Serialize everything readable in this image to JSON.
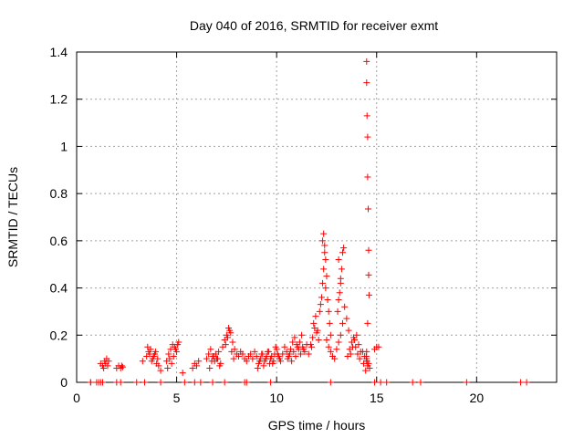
{
  "chart_data": {
    "type": "scatter",
    "title": "Day 040 of 2016, SRMTID for receiver exmt",
    "xlabel": "GPS time / hours",
    "ylabel": "SRMTID / TECUs",
    "xlim": [
      0,
      24
    ],
    "ylim": [
      0,
      1.4
    ],
    "xticks": [
      0,
      5,
      10,
      15,
      20
    ],
    "xtick_labels": [
      "0",
      "5",
      "10",
      "15",
      "20"
    ],
    "yticks": [
      0,
      0.2,
      0.4,
      0.6,
      0.8,
      1.0,
      1.2,
      1.4
    ],
    "ytick_labels": [
      "0",
      "0.2",
      "0.4",
      "0.6",
      "0.8",
      "1",
      "1.2",
      "1.4"
    ],
    "grid": true,
    "marker": "plus",
    "color": "#ff0000",
    "series": [
      {
        "x": [
          0.7,
          1.0,
          1.2,
          1.3,
          1.4,
          1.5,
          1.35,
          1.45,
          1.55,
          1.6,
          2.0,
          2.1,
          2.2,
          2.25,
          2.3,
          3.0,
          3.3,
          3.5,
          3.6,
          3.7,
          3.8,
          3.9,
          4.0,
          3.55,
          3.65,
          3.75,
          3.85,
          3.95,
          4.05,
          4.1,
          4.2,
          4.5,
          4.6,
          4.7,
          4.8,
          4.9,
          5.0,
          5.1,
          4.65,
          4.75,
          4.85,
          4.95,
          5.05,
          4.55,
          5.3,
          5.8,
          5.9,
          6.0,
          6.1,
          6.5,
          6.6,
          6.7,
          6.8,
          6.9,
          7.0,
          7.1,
          7.2,
          6.65,
          6.75,
          6.85,
          6.95,
          7.05,
          7.15,
          7.3,
          7.4,
          7.5,
          7.6,
          7.7,
          7.8,
          7.9,
          8.0,
          7.45,
          7.55,
          7.65,
          7.75,
          7.85,
          8.1,
          8.2,
          8.3,
          8.4,
          8.5,
          8.6,
          8.7,
          8.8,
          8.9,
          9.0,
          9.1,
          9.2,
          9.3,
          9.4,
          9.5,
          9.6,
          9.7,
          9.8,
          9.9,
          10.0,
          10.1,
          10.2,
          9.05,
          9.15,
          9.25,
          9.35,
          9.45,
          9.55,
          9.65,
          9.75,
          9.85,
          9.95,
          10.05,
          10.15,
          10.3,
          10.4,
          10.5,
          10.6,
          10.7,
          10.8,
          10.9,
          11.0,
          11.1,
          11.2,
          11.3,
          11.4,
          11.5,
          10.55,
          10.65,
          10.75,
          10.85,
          10.95,
          11.05,
          11.15,
          11.25,
          11.35,
          11.6,
          11.7,
          11.8,
          11.9,
          12.0,
          12.1,
          11.75,
          11.85,
          11.95,
          12.05,
          12.15,
          12.2,
          12.25,
          12.3,
          12.35,
          12.4,
          12.3,
          12.35,
          12.4,
          12.45,
          12.5,
          12.45,
          12.55,
          12.6,
          12.65,
          12.7,
          12.5,
          12.6,
          12.7,
          12.8,
          12.9,
          13.0,
          13.1,
          13.2,
          13.3,
          13.05,
          13.1,
          13.15,
          13.2,
          13.25,
          13.3,
          13.35,
          13.1,
          13.2,
          13.4,
          13.5,
          13.6,
          13.7,
          13.8,
          13.9,
          14.0,
          14.1,
          14.2,
          13.55,
          13.65,
          13.75,
          13.85,
          13.95,
          14.05,
          14.15,
          14.3,
          14.4,
          14.5,
          14.55,
          14.45,
          14.35,
          14.5,
          14.5,
          14.5,
          14.52,
          14.55,
          14.55,
          14.58,
          14.6,
          14.6,
          14.62,
          14.55,
          14.5,
          14.48,
          14.52,
          14.6,
          14.65,
          14.9,
          15.0,
          15.1,
          0.7,
          1.1,
          1.2,
          1.3,
          2.0,
          2.2,
          3.4,
          4.2,
          5.4,
          5.9,
          6.2,
          6.8,
          7.4,
          8.4,
          8.5,
          9.7,
          12.7,
          14.9,
          15.2,
          15.5,
          16.8,
          17.2,
          19.5,
          22.2,
          22.5
        ],
        "y": [
          0.0,
          0.0,
          0.08,
          0.07,
          0.09,
          0.1,
          0.06,
          0.08,
          0.07,
          0.09,
          0.06,
          0.07,
          0.06,
          0.07,
          0.065,
          0.0,
          0.09,
          0.11,
          0.13,
          0.14,
          0.1,
          0.12,
          0.08,
          0.15,
          0.12,
          0.09,
          0.11,
          0.13,
          0.1,
          0.07,
          0.05,
          0.09,
          0.12,
          0.14,
          0.16,
          0.15,
          0.13,
          0.17,
          0.1,
          0.08,
          0.11,
          0.14,
          0.16,
          0.06,
          0.04,
          0.06,
          0.08,
          0.07,
          0.09,
          0.1,
          0.12,
          0.14,
          0.11,
          0.09,
          0.1,
          0.13,
          0.08,
          0.06,
          0.09,
          0.11,
          0.12,
          0.1,
          0.07,
          0.15,
          0.18,
          0.2,
          0.23,
          0.21,
          0.17,
          0.14,
          0.12,
          0.16,
          0.19,
          0.22,
          0.13,
          0.1,
          0.11,
          0.13,
          0.12,
          0.1,
          0.09,
          0.11,
          0.12,
          0.1,
          0.13,
          0.11,
          0.08,
          0.1,
          0.12,
          0.09,
          0.11,
          0.13,
          0.1,
          0.08,
          0.12,
          0.14,
          0.11,
          0.09,
          0.06,
          0.09,
          0.12,
          0.07,
          0.1,
          0.13,
          0.08,
          0.11,
          0.09,
          0.15,
          0.12,
          0.1,
          0.12,
          0.15,
          0.13,
          0.11,
          0.14,
          0.17,
          0.19,
          0.16,
          0.14,
          0.12,
          0.15,
          0.13,
          0.16,
          0.1,
          0.12,
          0.09,
          0.13,
          0.11,
          0.15,
          0.17,
          0.2,
          0.14,
          0.12,
          0.16,
          0.19,
          0.23,
          0.21,
          0.18,
          0.15,
          0.25,
          0.28,
          0.22,
          0.3,
          0.33,
          0.36,
          0.42,
          0.48,
          0.55,
          0.6,
          0.63,
          0.58,
          0.52,
          0.45,
          0.4,
          0.35,
          0.3,
          0.25,
          0.2,
          0.18,
          0.15,
          0.13,
          0.11,
          0.1,
          0.14,
          0.17,
          0.2,
          0.25,
          0.3,
          0.35,
          0.38,
          0.42,
          0.48,
          0.55,
          0.57,
          0.52,
          0.44,
          0.32,
          0.27,
          0.22,
          0.12,
          0.15,
          0.18,
          0.2,
          0.16,
          0.13,
          0.11,
          0.14,
          0.17,
          0.19,
          0.15,
          0.12,
          0.1,
          0.13,
          0.11,
          0.09,
          0.07,
          0.05,
          0.08,
          0.1,
          1.36,
          1.27,
          1.13,
          1.04,
          0.87,
          0.735,
          0.56,
          0.455,
          0.37,
          0.25,
          0.13,
          0.11,
          0.09,
          0.08,
          0.06,
          0.14,
          0.15,
          0.15,
          0.0,
          0.0,
          0.0,
          0.0,
          0.0,
          0.0,
          0.0,
          0.0,
          0.0,
          0.0,
          0.0,
          0.0,
          0.0,
          0.0,
          0.0,
          0.0,
          0.0,
          0.0,
          0.0,
          0.0,
          0.0,
          0.0,
          0.0,
          0.0,
          0.0
        ]
      }
    ]
  }
}
